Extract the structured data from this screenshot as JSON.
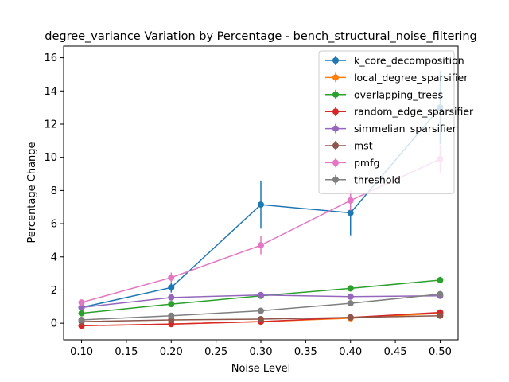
{
  "chart_data": {
    "type": "line",
    "title": "degree_variance Variation by Percentage - bench_structural_noise_filtering",
    "xlabel": "Noise Level",
    "ylabel": "Percentage Change",
    "xlim": [
      0.08,
      0.52
    ],
    "ylim": [
      -1.0,
      16.7
    ],
    "x_ticks": [
      0.1,
      0.15,
      0.2,
      0.25,
      0.3,
      0.35,
      0.4,
      0.45,
      0.5
    ],
    "y_ticks": [
      0,
      2,
      4,
      6,
      8,
      10,
      12,
      14,
      16
    ],
    "grid": false,
    "legend_position": "top-right",
    "x": [
      0.1,
      0.2,
      0.3,
      0.4,
      0.5
    ],
    "series": [
      {
        "name": "k_core_decomposition",
        "color": "#1f77b4",
        "values": [
          0.95,
          2.15,
          7.15,
          6.65,
          13.0
        ],
        "errors": [
          0.15,
          0.3,
          1.45,
          1.35,
          2.2
        ]
      },
      {
        "name": "local_degree_sparsifier",
        "color": "#ff7f0e",
        "values": [
          -0.15,
          -0.05,
          0.1,
          0.3,
          0.6
        ],
        "errors": [
          0.05,
          0.05,
          0.05,
          0.05,
          0.05
        ]
      },
      {
        "name": "overlapping_trees",
        "color": "#2ca02c",
        "values": [
          0.6,
          1.15,
          1.65,
          2.1,
          2.6
        ],
        "errors": [
          0.08,
          0.1,
          0.12,
          0.18,
          0.2
        ]
      },
      {
        "name": "random_edge_sparsifier",
        "color": "#d62728",
        "values": [
          -0.15,
          -0.05,
          0.1,
          0.35,
          0.65
        ],
        "errors": [
          0.05,
          0.05,
          0.05,
          0.05,
          0.05
        ]
      },
      {
        "name": "simmelian_sparsifier",
        "color": "#9467bd",
        "values": [
          0.95,
          1.55,
          1.7,
          1.6,
          1.65
        ],
        "errors": [
          0.05,
          0.05,
          0.05,
          0.05,
          0.08
        ]
      },
      {
        "name": "mst",
        "color": "#8c564b",
        "values": [
          0.1,
          0.2,
          0.25,
          0.35,
          0.45
        ],
        "errors": [
          0.03,
          0.03,
          0.03,
          0.03,
          0.03
        ]
      },
      {
        "name": "pmfg",
        "color": "#e377c2",
        "values": [
          1.25,
          2.75,
          4.7,
          7.4,
          9.9
        ],
        "errors": [
          0.15,
          0.3,
          0.55,
          0.6,
          0.85
        ]
      },
      {
        "name": "threshold",
        "color": "#7f7f7f",
        "values": [
          0.2,
          0.45,
          0.75,
          1.2,
          1.75
        ],
        "errors": [
          0.03,
          0.05,
          0.05,
          0.08,
          0.1
        ]
      }
    ]
  }
}
